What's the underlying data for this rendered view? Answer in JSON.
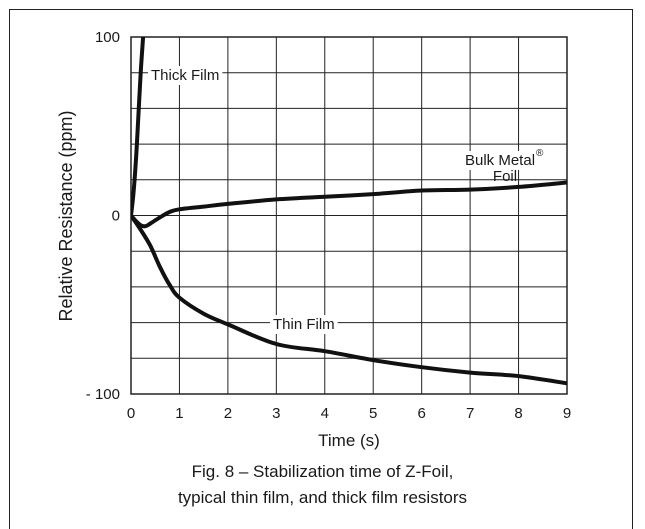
{
  "chart_data": {
    "type": "line",
    "xlabel": "Time (s)",
    "ylabel": "Relative Resistance (ppm)",
    "xlim": [
      0,
      9
    ],
    "ylim": [
      -100,
      100
    ],
    "x_ticks": [
      "0",
      "1",
      "2",
      "3",
      "4",
      "5",
      "6",
      "7",
      "8",
      "9"
    ],
    "y_ticks": [
      {
        "value": 100,
        "label": "100"
      },
      {
        "value": 0,
        "label": "0"
      },
      {
        "value": -100,
        "label": "- 100"
      }
    ],
    "grid": true,
    "series": [
      {
        "name": "Thick Film",
        "x": [
          0,
          0.05,
          0.1,
          0.15,
          0.2,
          0.25
        ],
        "y": [
          0,
          12,
          30,
          55,
          80,
          100
        ]
      },
      {
        "name": "Bulk Metal® Foil",
        "x": [
          0,
          0.1,
          0.2,
          0.3,
          0.4,
          0.6,
          0.8,
          1,
          1.5,
          2,
          3,
          4,
          5,
          6,
          7,
          8,
          9
        ],
        "y": [
          0,
          -3,
          -5.5,
          -6,
          -4.5,
          -1,
          2,
          3.5,
          5,
          6.5,
          9,
          10.5,
          12,
          14,
          14.5,
          16,
          18.5
        ]
      },
      {
        "name": "Thin Film",
        "x": [
          0,
          0.2,
          0.4,
          0.6,
          0.8,
          1,
          1.5,
          2,
          3,
          4,
          5,
          6,
          7,
          8,
          9
        ],
        "y": [
          0,
          -8,
          -17,
          -29,
          -39,
          -46,
          -55,
          -61,
          -72,
          -76,
          -81,
          -85,
          -88,
          -90,
          -94
        ]
      }
    ],
    "annotations": {
      "thick_film": "Thick Film",
      "bulk_metal_line1": "Bulk Metal",
      "bulk_metal_reg": "®",
      "bulk_metal_line2": "Foil",
      "thin_film": "Thin Film"
    },
    "caption_line1": "Fig. 8 – Stabilization time of Z-Foil,",
    "caption_line2": "typical thin film, and thick film resistors"
  }
}
